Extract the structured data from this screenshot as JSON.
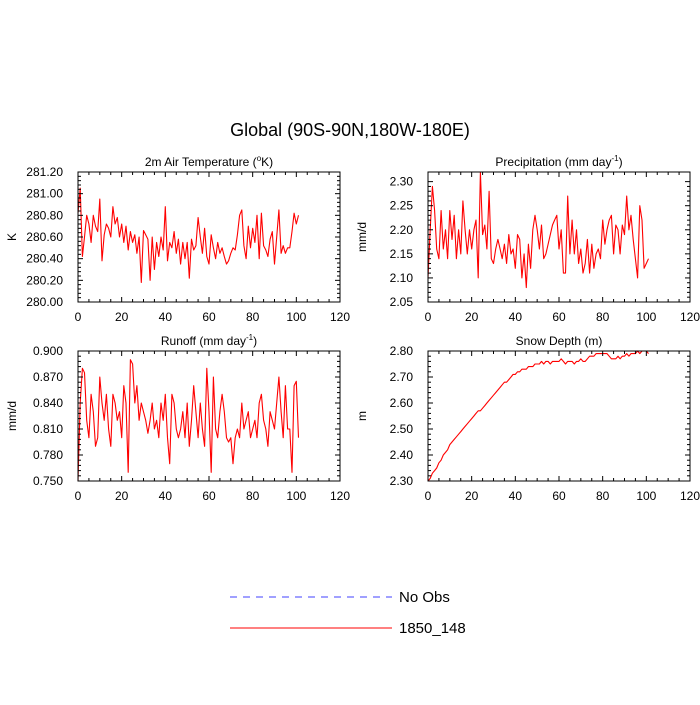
{
  "figure": {
    "title": "Global (90S-90N,180W-180E)"
  },
  "legend": [
    {
      "name": "No Obs",
      "color": "#4040ff",
      "style": "dashed"
    },
    {
      "name": "1850_148",
      "color": "#ff0000",
      "style": "solid"
    }
  ],
  "chart_data": [
    {
      "type": "line",
      "title": "2m Air Temperature (°K)",
      "title_parts": {
        "pre": "2m Air Temperature (",
        "sup": "o",
        "post": "K)"
      },
      "ylabel": "K",
      "xlim": [
        0,
        120
      ],
      "ylim": [
        280.0,
        281.2
      ],
      "xticks": [
        0,
        20,
        40,
        60,
        80,
        100,
        120
      ],
      "yticks": [
        280.0,
        280.2,
        280.4,
        280.6,
        280.8,
        281.0,
        281.2
      ],
      "ytick_labels": [
        "280.00",
        "280.20",
        "280.40",
        "280.60",
        "280.80",
        "281.00",
        "281.20"
      ],
      "grid": false,
      "series": [
        {
          "name": "1850_148",
          "color": "#ff0000",
          "x": [
            0,
            1,
            2,
            3,
            4,
            5,
            6,
            7,
            8,
            9,
            10,
            11,
            12,
            13,
            14,
            15,
            16,
            17,
            18,
            19,
            20,
            21,
            22,
            23,
            24,
            25,
            26,
            27,
            28,
            29,
            30,
            31,
            32,
            33,
            34,
            35,
            36,
            37,
            38,
            39,
            40,
            41,
            42,
            43,
            44,
            45,
            46,
            47,
            48,
            49,
            50,
            51,
            52,
            53,
            54,
            55,
            56,
            57,
            58,
            59,
            60,
            61,
            62,
            63,
            64,
            65,
            66,
            67,
            68,
            69,
            70,
            71,
            72,
            73,
            74,
            75,
            76,
            77,
            78,
            79,
            80,
            81,
            82,
            83,
            84,
            85,
            86,
            87,
            88,
            89,
            90,
            91,
            92,
            93,
            94,
            95,
            96,
            97,
            98,
            99,
            100,
            101
          ],
          "values": [
            280.82,
            281.05,
            280.42,
            280.6,
            280.8,
            280.72,
            280.55,
            280.8,
            280.7,
            280.65,
            280.95,
            280.38,
            280.62,
            280.72,
            280.68,
            280.6,
            280.88,
            280.72,
            280.78,
            280.6,
            280.72,
            280.55,
            280.7,
            280.48,
            280.65,
            280.55,
            280.62,
            280.45,
            280.6,
            280.18,
            280.66,
            280.62,
            280.58,
            280.2,
            280.6,
            280.3,
            280.55,
            280.42,
            280.6,
            280.48,
            280.88,
            280.38,
            280.55,
            280.5,
            280.65,
            280.45,
            280.58,
            280.35,
            280.55,
            280.4,
            280.55,
            280.22,
            280.58,
            280.48,
            280.52,
            280.78,
            280.6,
            280.45,
            280.68,
            280.42,
            280.35,
            280.62,
            280.5,
            280.4,
            280.55,
            280.45,
            280.5,
            280.42,
            280.35,
            280.38,
            280.45,
            280.5,
            280.48,
            280.62,
            280.8,
            280.85,
            280.52,
            280.4,
            280.7,
            280.5,
            280.68,
            280.55,
            280.8,
            280.4,
            280.82,
            280.52,
            280.48,
            280.42,
            280.58,
            280.65,
            280.35,
            280.6,
            280.85,
            280.45,
            280.52,
            280.45,
            280.5,
            280.5,
            280.65,
            280.82,
            280.72,
            280.8
          ]
        }
      ]
    },
    {
      "type": "line",
      "title": "Precipitation (mm day-1)",
      "title_parts": {
        "pre": "Precipitation (mm day",
        "sup": "-1",
        "post": ")"
      },
      "ylabel": "mm/d",
      "xlim": [
        0,
        120
      ],
      "ylim": [
        2.05,
        2.32
      ],
      "xticks": [
        0,
        20,
        40,
        60,
        80,
        100,
        120
      ],
      "yticks": [
        2.05,
        2.1,
        2.15,
        2.2,
        2.25,
        2.3
      ],
      "ytick_labels": [
        "2.05",
        "2.10",
        "2.15",
        "2.20",
        "2.25",
        "2.30"
      ],
      "grid": false,
      "series": [
        {
          "name": "1850_148",
          "color": "#ff0000",
          "x": [
            0,
            1,
            2,
            3,
            4,
            5,
            6,
            7,
            8,
            9,
            10,
            11,
            12,
            13,
            14,
            15,
            16,
            17,
            18,
            19,
            20,
            21,
            22,
            23,
            24,
            25,
            26,
            27,
            28,
            29,
            30,
            31,
            32,
            33,
            34,
            35,
            36,
            37,
            38,
            39,
            40,
            41,
            42,
            43,
            44,
            45,
            46,
            47,
            48,
            49,
            50,
            51,
            52,
            53,
            54,
            55,
            56,
            57,
            58,
            59,
            60,
            61,
            62,
            63,
            64,
            65,
            66,
            67,
            68,
            69,
            70,
            71,
            72,
            73,
            74,
            75,
            76,
            77,
            78,
            79,
            80,
            81,
            82,
            83,
            84,
            85,
            86,
            87,
            88,
            89,
            90,
            91,
            92,
            93,
            94,
            95,
            96,
            97,
            98,
            99,
            100,
            101
          ],
          "values": [
            2.1,
            2.2,
            2.29,
            2.24,
            2.16,
            2.14,
            2.24,
            2.16,
            2.2,
            2.14,
            2.24,
            2.18,
            2.23,
            2.14,
            2.2,
            2.15,
            2.26,
            2.2,
            2.15,
            2.2,
            2.16,
            2.2,
            2.22,
            2.1,
            2.32,
            2.19,
            2.21,
            2.16,
            2.28,
            2.14,
            2.13,
            2.16,
            2.18,
            2.16,
            2.14,
            2.17,
            2.13,
            2.19,
            2.15,
            2.16,
            2.12,
            2.19,
            2.18,
            2.1,
            2.15,
            2.08,
            2.17,
            2.12,
            2.2,
            2.23,
            2.2,
            2.16,
            2.21,
            2.14,
            2.15,
            2.17,
            2.19,
            2.21,
            2.22,
            2.23,
            2.16,
            2.2,
            2.11,
            2.11,
            2.27,
            2.15,
            2.22,
            2.15,
            2.2,
            2.13,
            2.16,
            2.11,
            2.13,
            2.18,
            2.11,
            2.17,
            2.12,
            2.15,
            2.16,
            2.14,
            2.22,
            2.17,
            2.2,
            2.22,
            2.23,
            2.15,
            2.21,
            2.2,
            2.15,
            2.21,
            2.19,
            2.27,
            2.2,
            2.23,
            2.18,
            2.14,
            2.1,
            2.25,
            2.22,
            2.12,
            2.13,
            2.14
          ]
        }
      ]
    },
    {
      "type": "line",
      "title": "Runoff (mm day-1)",
      "title_parts": {
        "pre": "Runoff (mm day",
        "sup": "-1",
        "post": ")"
      },
      "ylabel": "mm/d",
      "xlim": [
        0,
        120
      ],
      "ylim": [
        0.75,
        0.9
      ],
      "xticks": [
        0,
        20,
        40,
        60,
        80,
        100,
        120
      ],
      "yticks": [
        0.75,
        0.78,
        0.81,
        0.84,
        0.87,
        0.9
      ],
      "ytick_labels": [
        "0.750",
        "0.780",
        "0.810",
        "0.840",
        "0.870",
        "0.900"
      ],
      "grid": false,
      "series": [
        {
          "name": "1850_148",
          "color": "#ff0000",
          "x": [
            0,
            1,
            2,
            3,
            4,
            5,
            6,
            7,
            8,
            9,
            10,
            11,
            12,
            13,
            14,
            15,
            16,
            17,
            18,
            19,
            20,
            21,
            22,
            23,
            24,
            25,
            26,
            27,
            28,
            29,
            30,
            31,
            32,
            33,
            34,
            35,
            36,
            37,
            38,
            39,
            40,
            41,
            42,
            43,
            44,
            45,
            46,
            47,
            48,
            49,
            50,
            51,
            52,
            53,
            54,
            55,
            56,
            57,
            58,
            59,
            60,
            61,
            62,
            63,
            64,
            65,
            66,
            67,
            68,
            69,
            70,
            71,
            72,
            73,
            74,
            75,
            76,
            77,
            78,
            79,
            80,
            81,
            82,
            83,
            84,
            85,
            86,
            87,
            88,
            89,
            90,
            91,
            92,
            93,
            94,
            95,
            96,
            97,
            98,
            99,
            100,
            101
          ],
          "values": [
            0.75,
            0.84,
            0.88,
            0.875,
            0.82,
            0.8,
            0.85,
            0.83,
            0.79,
            0.8,
            0.87,
            0.84,
            0.82,
            0.85,
            0.81,
            0.79,
            0.85,
            0.84,
            0.82,
            0.83,
            0.8,
            0.86,
            0.84,
            0.76,
            0.89,
            0.885,
            0.84,
            0.86,
            0.82,
            0.84,
            0.83,
            0.82,
            0.805,
            0.82,
            0.84,
            0.81,
            0.82,
            0.8,
            0.84,
            0.82,
            0.85,
            0.8,
            0.77,
            0.85,
            0.84,
            0.81,
            0.8,
            0.81,
            0.83,
            0.8,
            0.84,
            0.79,
            0.82,
            0.86,
            0.83,
            0.8,
            0.84,
            0.81,
            0.79,
            0.88,
            0.83,
            0.76,
            0.87,
            0.81,
            0.8,
            0.83,
            0.85,
            0.83,
            0.8,
            0.795,
            0.8,
            0.77,
            0.8,
            0.81,
            0.8,
            0.84,
            0.81,
            0.82,
            0.83,
            0.8,
            0.81,
            0.82,
            0.8,
            0.84,
            0.85,
            0.82,
            0.81,
            0.79,
            0.83,
            0.82,
            0.81,
            0.84,
            0.87,
            0.83,
            0.8,
            0.86,
            0.81,
            0.81,
            0.76,
            0.86,
            0.865,
            0.8
          ]
        }
      ]
    },
    {
      "type": "line",
      "title": "Snow Depth (m)",
      "title_parts": {
        "pre": "Snow Depth (m)",
        "sup": "",
        "post": ""
      },
      "ylabel": "m",
      "xlim": [
        0,
        120
      ],
      "ylim": [
        2.3,
        2.8
      ],
      "xticks": [
        0,
        20,
        40,
        60,
        80,
        100,
        120
      ],
      "yticks": [
        2.3,
        2.4,
        2.5,
        2.6,
        2.7,
        2.8
      ],
      "ytick_labels": [
        "2.30",
        "2.40",
        "2.50",
        "2.60",
        "2.70",
        "2.80"
      ],
      "grid": false,
      "series": [
        {
          "name": "1850_148",
          "color": "#ff0000",
          "x": [
            0,
            1,
            2,
            3,
            4,
            5,
            6,
            7,
            8,
            9,
            10,
            11,
            12,
            13,
            14,
            15,
            16,
            17,
            18,
            19,
            20,
            21,
            22,
            23,
            24,
            25,
            26,
            27,
            28,
            29,
            30,
            31,
            32,
            33,
            34,
            35,
            36,
            37,
            38,
            39,
            40,
            41,
            42,
            43,
            44,
            45,
            46,
            47,
            48,
            49,
            50,
            51,
            52,
            53,
            54,
            55,
            56,
            57,
            58,
            59,
            60,
            61,
            62,
            63,
            64,
            65,
            66,
            67,
            68,
            69,
            70,
            71,
            72,
            73,
            74,
            75,
            76,
            77,
            78,
            79,
            80,
            81,
            82,
            83,
            84,
            85,
            86,
            87,
            88,
            89,
            90,
            91,
            92,
            93,
            94,
            95,
            96,
            97,
            98,
            99,
            100,
            101
          ],
          "values": [
            2.3,
            2.31,
            2.33,
            2.34,
            2.35,
            2.37,
            2.38,
            2.4,
            2.41,
            2.42,
            2.44,
            2.45,
            2.46,
            2.47,
            2.48,
            2.49,
            2.5,
            2.51,
            2.52,
            2.53,
            2.54,
            2.55,
            2.56,
            2.57,
            2.57,
            2.58,
            2.59,
            2.6,
            2.61,
            2.62,
            2.63,
            2.64,
            2.65,
            2.66,
            2.67,
            2.68,
            2.68,
            2.69,
            2.7,
            2.71,
            2.71,
            2.72,
            2.72,
            2.73,
            2.73,
            2.73,
            2.74,
            2.74,
            2.74,
            2.75,
            2.75,
            2.75,
            2.76,
            2.75,
            2.76,
            2.76,
            2.75,
            2.76,
            2.76,
            2.76,
            2.76,
            2.77,
            2.76,
            2.75,
            2.76,
            2.76,
            2.76,
            2.75,
            2.76,
            2.76,
            2.77,
            2.76,
            2.76,
            2.77,
            2.78,
            2.78,
            2.78,
            2.79,
            2.79,
            2.79,
            2.79,
            2.79,
            2.79,
            2.78,
            2.77,
            2.77,
            2.77,
            2.78,
            2.77,
            2.78,
            2.78,
            2.79,
            2.78,
            2.79,
            2.79,
            2.79,
            2.8,
            2.79,
            2.8,
            2.8,
            2.8,
            2.79
          ]
        }
      ]
    }
  ]
}
